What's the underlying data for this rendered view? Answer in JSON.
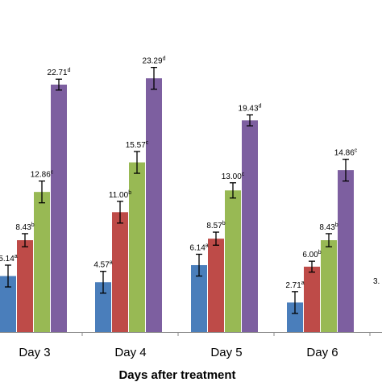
{
  "chart_data": {
    "type": "bar",
    "xlabel": "Days after treatment",
    "categories": [
      "Day 3",
      "Day 4",
      "Day 5",
      "Day 6"
    ],
    "series": [
      {
        "color": "#4a7ebb",
        "values": [
          5.14,
          4.57,
          6.14,
          2.71
        ],
        "errors": [
          1.0,
          1.0,
          1.0,
          1.0
        ],
        "letters": [
          "a",
          "a",
          "a",
          "a"
        ],
        "labels": [
          "5.14",
          "4.57",
          "6.14",
          "2.71"
        ]
      },
      {
        "color": "#be4b48",
        "values": [
          8.43,
          11.0,
          8.57,
          6.0
        ],
        "errors": [
          0.6,
          1.0,
          0.6,
          0.5
        ],
        "letters": [
          "b",
          "b",
          "b",
          "b"
        ],
        "labels": [
          "8.43",
          "11.00",
          "8.57",
          "6.00"
        ]
      },
      {
        "color": "#98b954",
        "values": [
          12.86,
          15.57,
          13.0,
          8.43
        ],
        "errors": [
          1.0,
          1.0,
          0.7,
          0.6
        ],
        "letters": [
          "c",
          "c",
          "c",
          "b"
        ],
        "labels": [
          "12.86",
          "15.57",
          "13.00",
          "8.43"
        ]
      },
      {
        "color": "#7d5fa0",
        "values": [
          22.71,
          23.29,
          19.43,
          14.86
        ],
        "errors": [
          0.5,
          1.0,
          0.5,
          1.0
        ],
        "letters": [
          "d",
          "d",
          "d",
          "c"
        ],
        "labels": [
          "22.71",
          "23.29",
          "19.43",
          "14.86"
        ]
      }
    ],
    "partial_label": "3.",
    "ylim": [
      0,
      25
    ]
  }
}
